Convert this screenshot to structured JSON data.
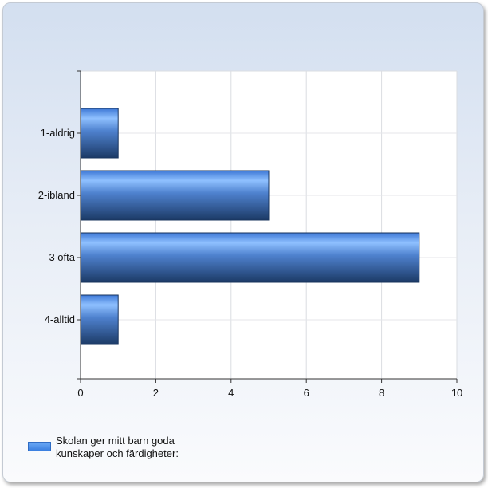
{
  "chart_data": {
    "type": "bar",
    "orientation": "horizontal",
    "categories": [
      "1-aldrig",
      "2-ibland",
      "3 ofta",
      "4-alltid"
    ],
    "series": [
      {
        "name": "Skolan ger mitt barn goda kunskaper och färdigheter:",
        "values": [
          1,
          5,
          9,
          1
        ],
        "color": "#4a86e8"
      }
    ],
    "xlim": [
      0,
      10
    ],
    "x_ticks": [
      0,
      2,
      4,
      6,
      8,
      10
    ],
    "title": "",
    "xlabel": "",
    "ylabel": "",
    "grid": true,
    "legend_position": "bottom-left"
  }
}
